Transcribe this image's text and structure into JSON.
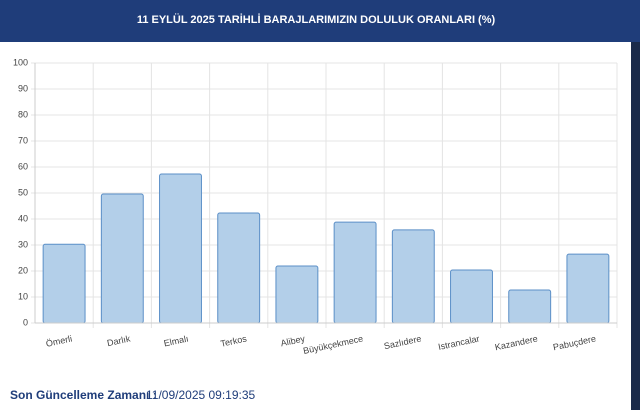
{
  "chart_data": {
    "type": "bar",
    "title": "11 EYLÜL 2025 TARİHLİ BARAJLARIMIZIN DOLULUK ORANLARI (%)",
    "categories": [
      "Ömerli",
      "Darlık",
      "Elmalı",
      "Terkos",
      "Alibey",
      "Büyükçekmece",
      "Sazlıdere",
      "Istrancalar",
      "Kazandere",
      "Pabuçdere"
    ],
    "values": [
      30.3,
      49.6,
      57.3,
      42.3,
      21.9,
      38.8,
      35.8,
      20.4,
      12.7,
      26.5
    ],
    "color": "#b3cfe9",
    "ylim": [
      0,
      100
    ],
    "yticks": [
      0,
      10,
      20,
      30,
      40,
      50,
      60,
      70,
      80,
      90,
      100
    ],
    "grid": true
  },
  "footer": {
    "label": "Son Güncelleme Zamanı :",
    "value": "11/09/2025 09:19:35"
  }
}
